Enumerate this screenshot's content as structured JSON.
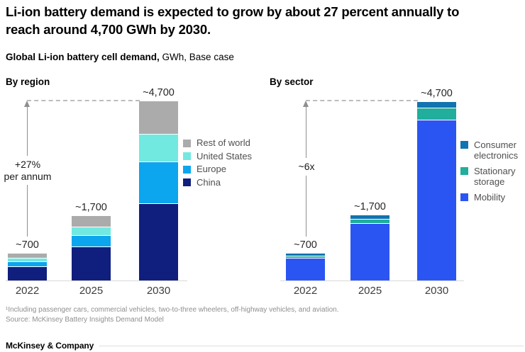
{
  "page": {
    "title": {
      "line1": "Li-ion battery demand is expected to grow by about 27 percent annually to",
      "line2": "reach around 4,700  GWh by 2030."
    },
    "subtitle": {
      "bold": "Global Li-ion battery cell demand,",
      "regular": " GWh, Base case"
    },
    "footnotes": [
      "¹Including passenger cars, commercial vehicles, two-to-three wheelers, off-highway vehicles, and aviation.",
      "Source: McKinsey Battery Insights Demand Model"
    ],
    "footer": {
      "brand": "McKinsey & Company"
    }
  },
  "chart_data": [
    {
      "id": "by_region",
      "type": "bar",
      "stacked": true,
      "title": "By region",
      "unit": "GWh",
      "categories": [
        "2022",
        "2025",
        "2030"
      ],
      "total_labels": [
        "~700",
        "~1,700",
        "~4,700"
      ],
      "totals": [
        700,
        1700,
        4700
      ],
      "annotation": "+27%\nper annum",
      "ylim": [
        0,
        4700
      ],
      "grid": false,
      "legend_position": "right",
      "series": [
        {
          "name": "Rest of world",
          "color": "#ababab",
          "values": [
            130,
            300,
            880
          ]
        },
        {
          "name": "United States",
          "color": "#71e9e0",
          "values": [
            90,
            220,
            720
          ]
        },
        {
          "name": "Europe",
          "color": "#0ba6ee",
          "values": [
            130,
            300,
            1100
          ]
        },
        {
          "name": "China",
          "color": "#101f7d",
          "values": [
            350,
            880,
            2000
          ]
        }
      ]
    },
    {
      "id": "by_sector",
      "type": "bar",
      "stacked": true,
      "title": "By sector",
      "unit": "GWh",
      "categories": [
        "2022",
        "2025",
        "2030"
      ],
      "total_labels": [
        "~700",
        "~1,700",
        "~4,700"
      ],
      "totals": [
        700,
        1700,
        4700
      ],
      "annotation": "~6x",
      "ylim": [
        0,
        4700
      ],
      "grid": false,
      "legend_position": "right",
      "series": [
        {
          "name": "Consumer electronics",
          "color": "#1173af",
          "values": [
            75,
            110,
            170
          ]
        },
        {
          "name": "Stationary storage",
          "color": "#21ae9c",
          "values": [
            55,
            110,
            320
          ]
        },
        {
          "name": "Mobility",
          "color": "#2b55f2",
          "values": [
            570,
            1480,
            4210
          ]
        }
      ]
    }
  ]
}
